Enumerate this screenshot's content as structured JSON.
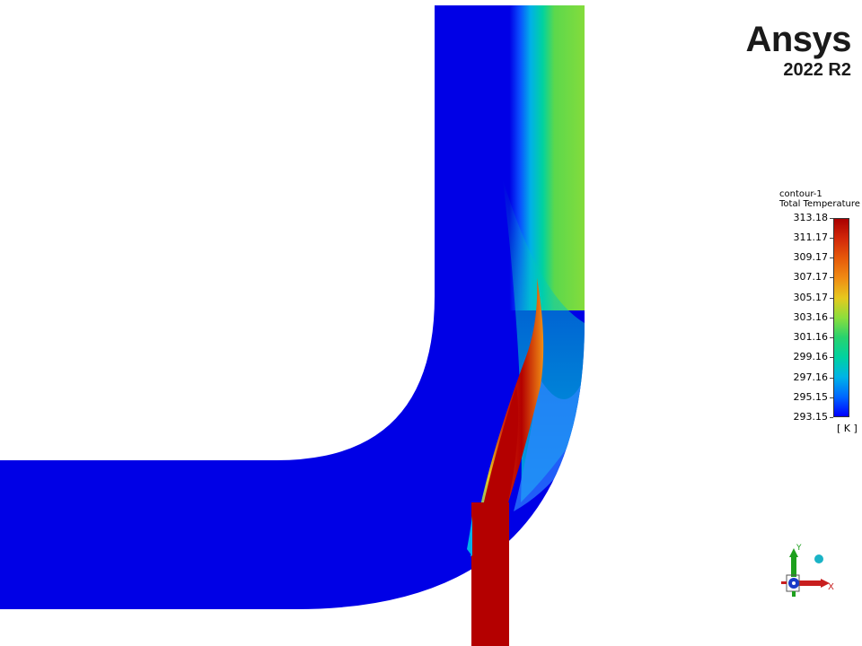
{
  "logo": {
    "brand": "Ansys",
    "version": "2022 R2"
  },
  "legend": {
    "title_line1": "contour-1",
    "title_line2": "Total Temperature",
    "unit": "[ K ]",
    "ticks": [
      "313.18",
      "311.17",
      "309.17",
      "307.17",
      "305.17",
      "303.16",
      "301.16",
      "299.16",
      "297.16",
      "295.15",
      "293.15"
    ]
  },
  "colors": {
    "cold": "#0000e6",
    "hot": "#b40000",
    "background": "#ffffff"
  },
  "triad": {
    "x_label": "X",
    "y_label": "Y"
  }
}
